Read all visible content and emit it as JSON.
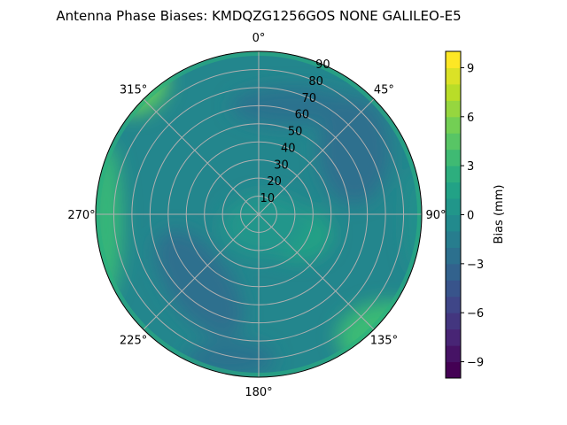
{
  "chart_data": {
    "type": "contour",
    "projection": "polar",
    "title": "Antenna Phase Biases: KMDQZG1256GOS   NONE GALILEO-E5",
    "theta_direction": "clockwise",
    "theta_zero": "top",
    "theta_ticks": [
      "0°",
      "45°",
      "90°",
      "135°",
      "180°",
      "225°",
      "270°",
      "315°"
    ],
    "r_ticks": [
      "10",
      "20",
      "30",
      "40",
      "50",
      "60",
      "70",
      "80",
      "90"
    ],
    "rlim": [
      0,
      90
    ],
    "grid": true,
    "colormap": "viridis",
    "colorbar": {
      "label": "Bias (mm)",
      "range": [
        -10,
        10
      ],
      "ticks": [
        "-9",
        "-6",
        "-3",
        "0",
        "3",
        "6",
        "9"
      ],
      "levels": 21
    }
  }
}
